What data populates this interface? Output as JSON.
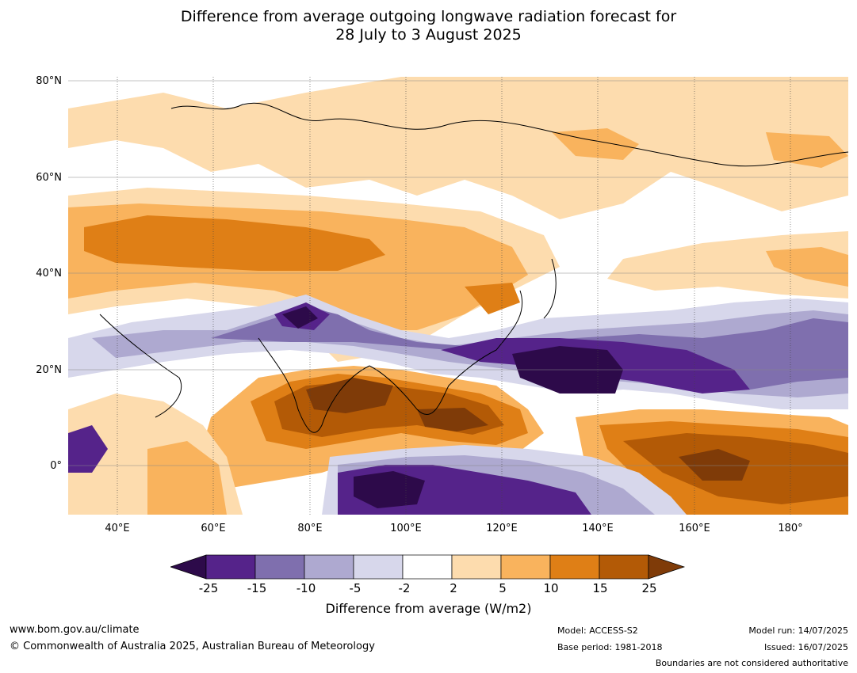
{
  "title": {
    "line1": "Difference from average outgoing longwave radiation forecast for",
    "line2": "28 July to 3 August 2025"
  },
  "map": {
    "region": "Asia, Indian Ocean and western Pacific",
    "lat_labels": [
      "80°N",
      "60°N",
      "40°N",
      "20°N",
      "0°"
    ],
    "lon_labels": [
      "40°E",
      "60°E",
      "80°E",
      "100°E",
      "120°E",
      "140°E",
      "160°E",
      "180°"
    ],
    "gridlines": true
  },
  "legend": {
    "ticks": [
      "-25",
      "-15",
      "-10",
      "-5",
      "-2",
      "2",
      "5",
      "10",
      "15",
      "25"
    ],
    "colors": {
      "below_min": "#2d0a4a",
      "bins": [
        "#55238a",
        "#7f6fae",
        "#aea9d0",
        "#d7d7eb",
        "#ffffff",
        "#fddcae",
        "#f9b35d",
        "#df7f16",
        "#b35a06"
      ],
      "above_max": "#7f3b08"
    },
    "title": "Difference from average (W/m2)"
  },
  "footer": {
    "website": "www.bom.gov.au/climate",
    "copyright": "© Commonwealth of Australia 2025, Australian Bureau of Meteorology",
    "model": "Model: ACCESS-S2",
    "base_period": "Base period: 1981-2018",
    "model_run": "Model run: 14/07/2025",
    "issued": "Issued: 16/07/2025",
    "disclaimer": "Boundaries are not considered authoritative"
  }
}
